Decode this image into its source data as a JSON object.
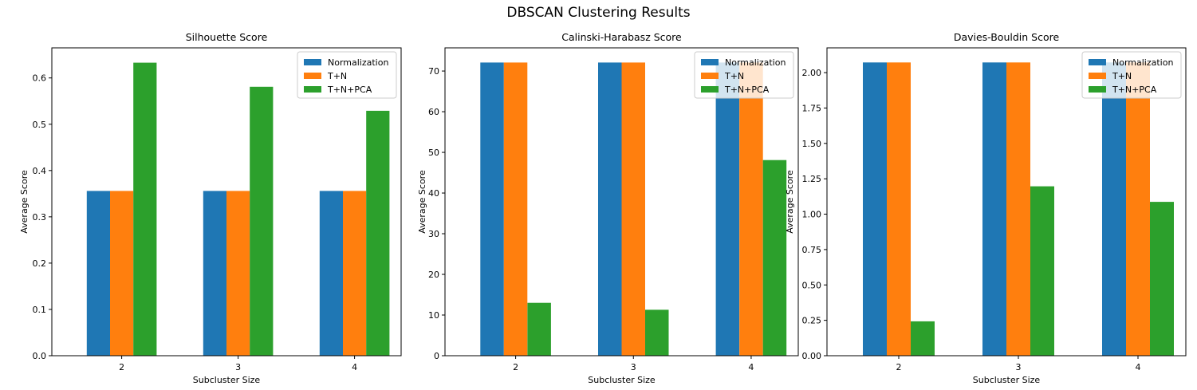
{
  "figure": {
    "suptitle": "DBSCAN Clustering Results"
  },
  "colors": {
    "Normalization": "#1f77b4",
    "T+N": "#ff7f0e",
    "T+N+PCA": "#2ca02c"
  },
  "chart_data": [
    {
      "type": "bar",
      "title": "Silhouette Score",
      "xlabel": "Subcluster Size",
      "ylabel": "Average Score",
      "categories": [
        "2",
        "3",
        "4"
      ],
      "ylim": [
        0,
        0.665
      ],
      "yticks": [
        0.0,
        0.1,
        0.2,
        0.3,
        0.4,
        0.5,
        0.6
      ],
      "ytick_labels": [
        "0.0",
        "0.1",
        "0.2",
        "0.3",
        "0.4",
        "0.5",
        "0.6"
      ],
      "legend": "top-right",
      "grid": false,
      "series": [
        {
          "name": "Normalization",
          "values": [
            0.356,
            0.356,
            0.356
          ]
        },
        {
          "name": "T+N",
          "values": [
            0.356,
            0.356,
            0.356
          ]
        },
        {
          "name": "T+N+PCA",
          "values": [
            0.633,
            0.581,
            0.529
          ]
        }
      ]
    },
    {
      "type": "bar",
      "title": "Calinski-Harabasz Score",
      "xlabel": "Subcluster Size",
      "ylabel": "Average Score",
      "categories": [
        "2",
        "3",
        "4"
      ],
      "ylim": [
        0,
        75.7
      ],
      "yticks": [
        0,
        10,
        20,
        30,
        40,
        50,
        60,
        70
      ],
      "ytick_labels": [
        "0",
        "10",
        "20",
        "30",
        "40",
        "50",
        "60",
        "70"
      ],
      "legend": "top-right",
      "grid": false,
      "series": [
        {
          "name": "Normalization",
          "values": [
            72.1,
            72.1,
            72.1
          ]
        },
        {
          "name": "T+N",
          "values": [
            72.1,
            72.1,
            72.1
          ]
        },
        {
          "name": "T+N+PCA",
          "values": [
            13.0,
            11.3,
            48.1
          ]
        }
      ]
    },
    {
      "type": "bar",
      "title": "Davies-Bouldin Score",
      "xlabel": "Subcluster Size",
      "ylabel": "Average Score",
      "categories": [
        "2",
        "3",
        "4"
      ],
      "ylim": [
        0,
        2.175
      ],
      "yticks": [
        0.0,
        0.25,
        0.5,
        0.75,
        1.0,
        1.25,
        1.5,
        1.75,
        2.0
      ],
      "ytick_labels": [
        "0.00",
        "0.25",
        "0.50",
        "0.75",
        "1.00",
        "1.25",
        "1.50",
        "1.75",
        "2.00"
      ],
      "legend": "top-right",
      "grid": false,
      "series": [
        {
          "name": "Normalization",
          "values": [
            2.072,
            2.072,
            2.072
          ]
        },
        {
          "name": "T+N",
          "values": [
            2.072,
            2.072,
            2.072
          ]
        },
        {
          "name": "T+N+PCA",
          "values": [
            0.243,
            1.197,
            1.087
          ]
        }
      ]
    }
  ]
}
